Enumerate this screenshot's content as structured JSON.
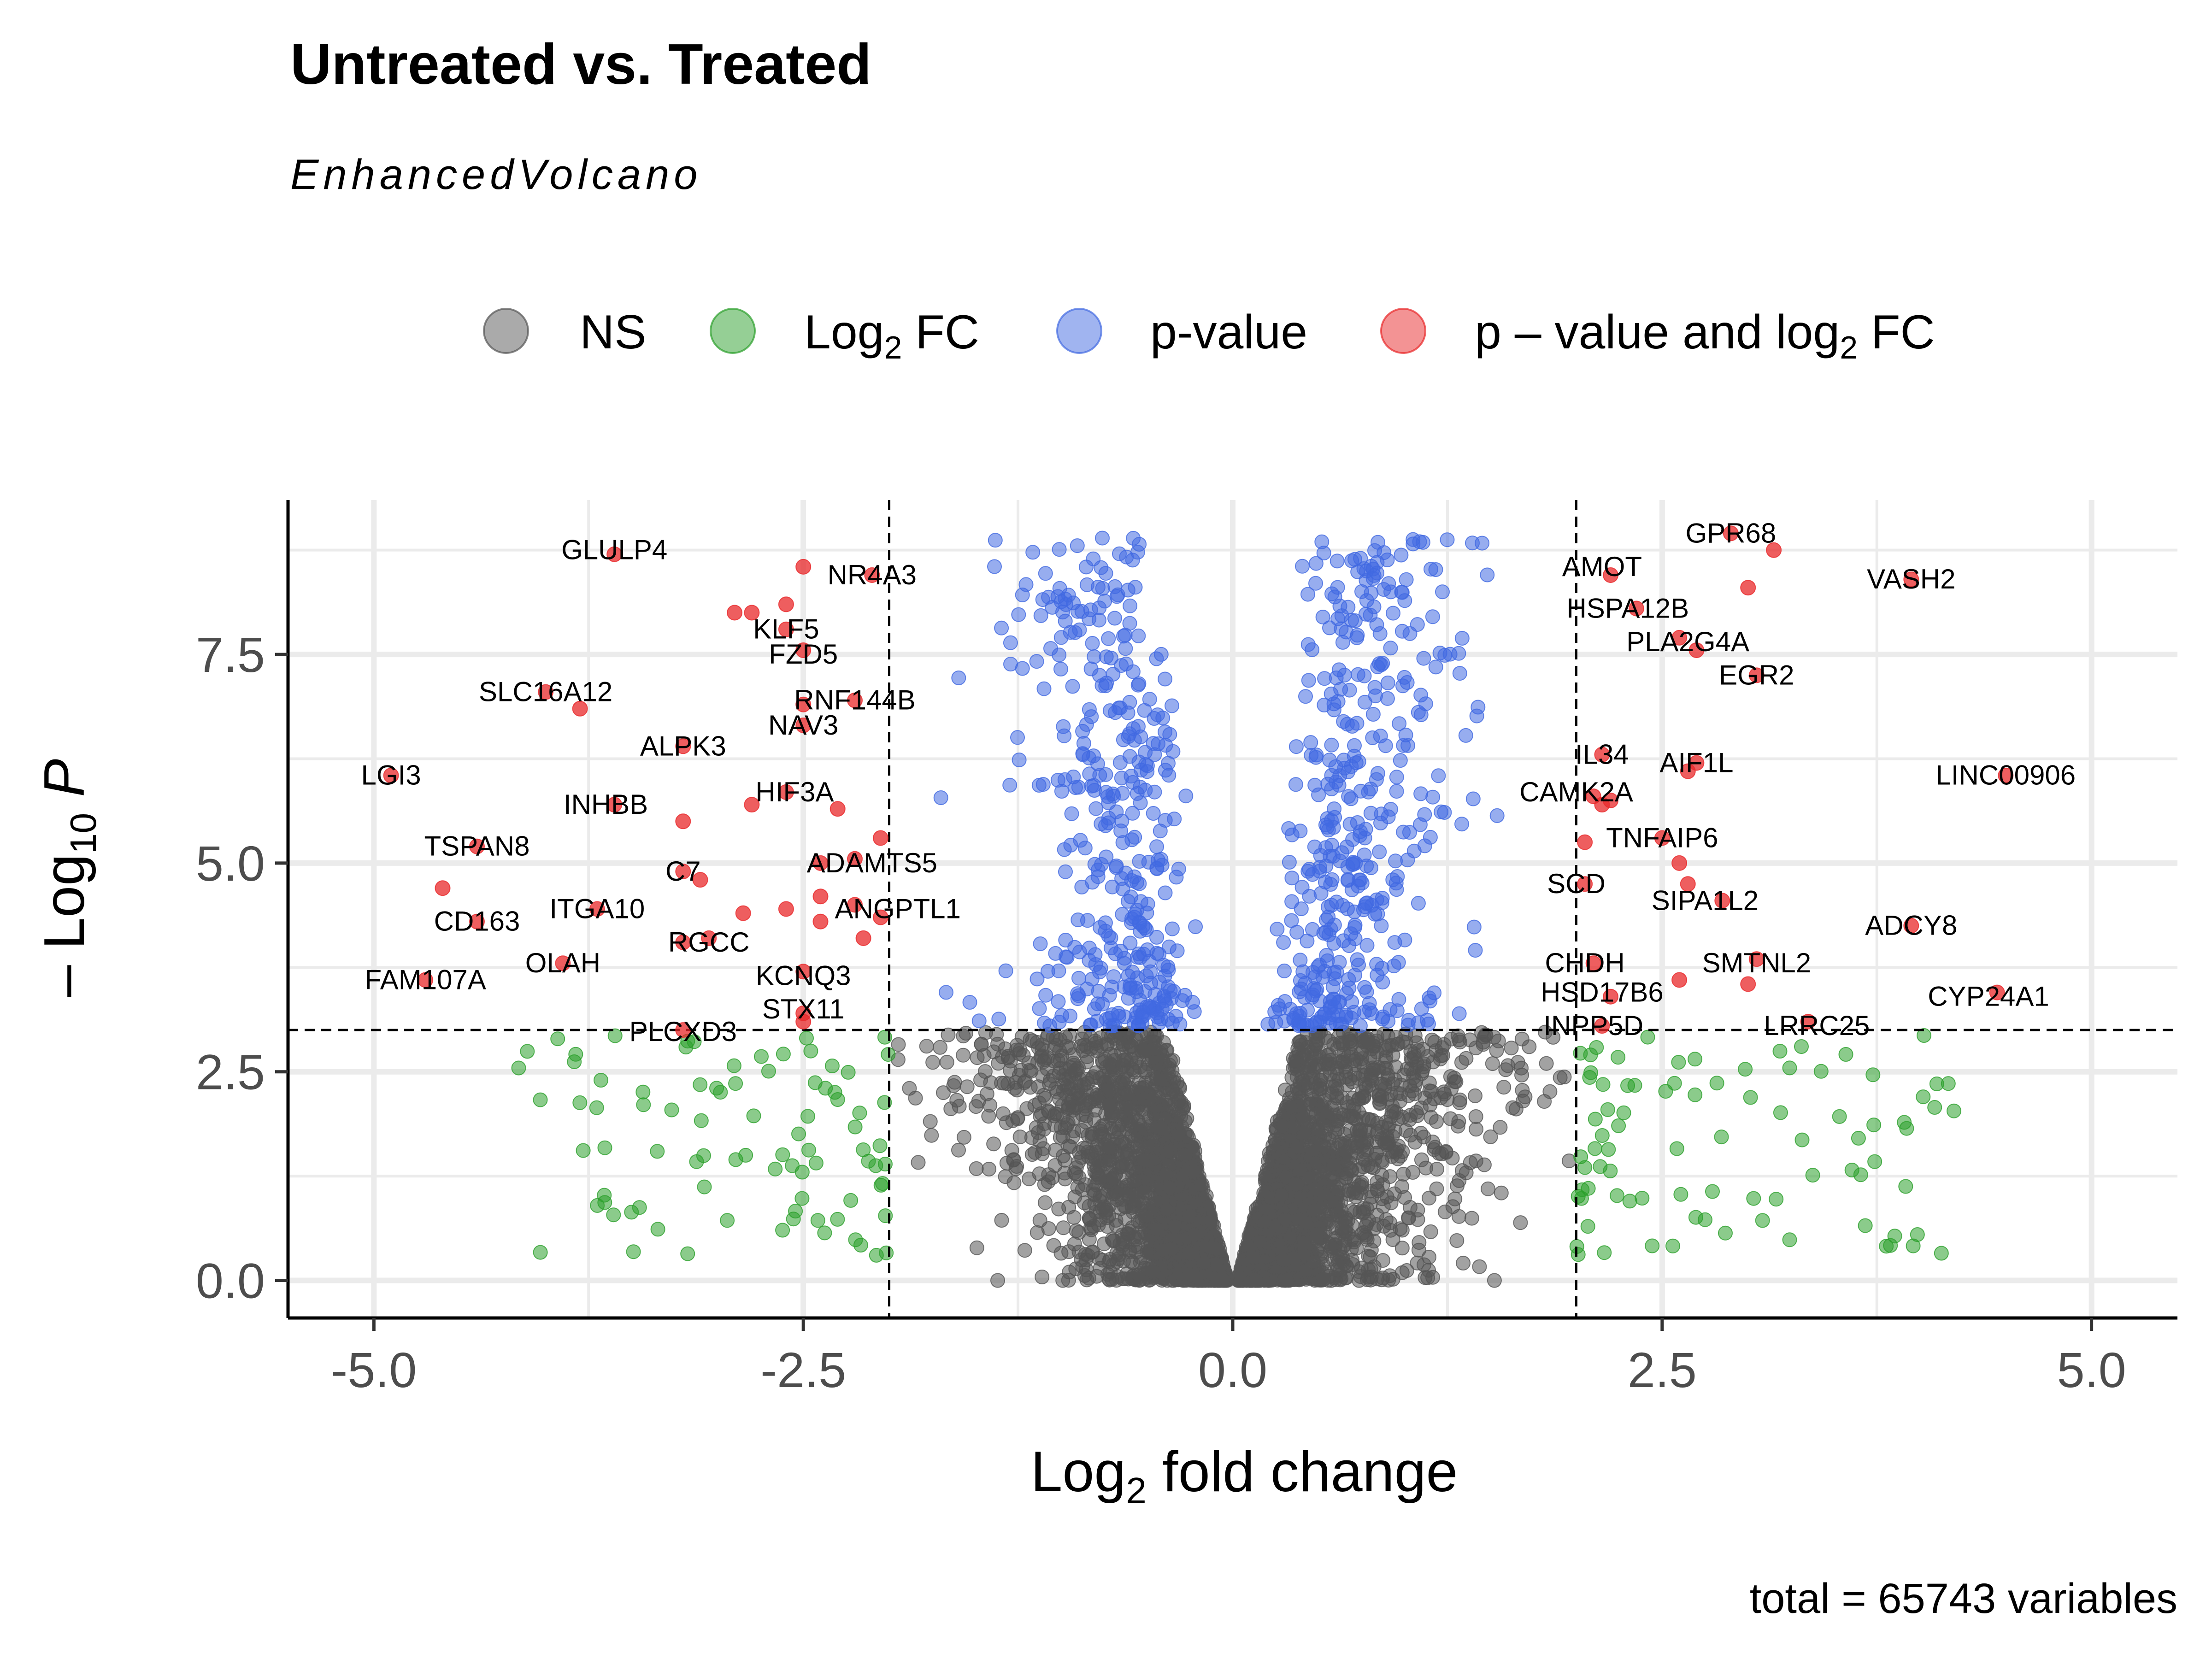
{
  "chart_data": {
    "type": "scatter",
    "title": "Untreated vs. Treated",
    "subtitle": "EnhancedVolcano",
    "caption": "total = 65743 variables",
    "xlabel": {
      "main": "Log",
      "sub": "2",
      "rest": " fold change"
    },
    "ylabel": {
      "prefix": "– Log",
      "sub": "10",
      "var": "P"
    },
    "xlim": [
      -5.5,
      5.5
    ],
    "ylim": [
      -0.45,
      9.35
    ],
    "x_ticks": [
      -5.0,
      -2.5,
      0.0,
      2.5,
      5.0
    ],
    "x_tick_labels": [
      "-5.0",
      "-2.5",
      "0.0",
      "2.5",
      "5.0"
    ],
    "y_ticks": [
      0.0,
      2.5,
      5.0,
      7.5
    ],
    "y_tick_labels": [
      "0.0",
      "2.5",
      "5.0",
      "7.5"
    ],
    "grid": true,
    "thresholds": {
      "log2fc": [
        -2,
        2
      ],
      "neg_log10_p": 3
    },
    "legend_position": "top",
    "legend": [
      {
        "key": "ns",
        "label": "NS",
        "color": "#555555"
      },
      {
        "key": "fc",
        "label": "Log",
        "sub": "2",
        "rest": " FC",
        "color": "#2ca02c"
      },
      {
        "key": "p",
        "label": "p-value",
        "color": "#4169e1"
      },
      {
        "key": "both",
        "label": "p – value and log",
        "sub": "2",
        "rest": " FC",
        "color": "#e8282a"
      }
    ],
    "colors": {
      "ns": "#555555",
      "fc": "#2ca02c",
      "p": "#4169e1",
      "both": "#e8282a"
    },
    "series": [
      {
        "name": "NS",
        "generated": {
          "count": 4200,
          "desc": "dense cloud near x=0, y up to 3"
        }
      },
      {
        "name": "Log2 FC",
        "generated": {
          "count": 170,
          "desc": "|x|>2, y<3"
        }
      },
      {
        "name": "p-value",
        "generated": {
          "count": 780,
          "desc": "|x|<2, y>3"
        }
      },
      {
        "name": "p - value and log2 FC",
        "points": [
          {
            "x": -3.6,
            "y": 8.7,
            "label": "GLULP4"
          },
          {
            "x": -2.5,
            "y": 8.55
          },
          {
            "x": -2.1,
            "y": 8.45,
            "label": "NR4A3"
          },
          {
            "x": -2.9,
            "y": 8.0
          },
          {
            "x": -2.8,
            "y": 8.0
          },
          {
            "x": -2.6,
            "y": 7.8,
            "label": "KLF5"
          },
          {
            "x": -2.6,
            "y": 8.1
          },
          {
            "x": -2.5,
            "y": 7.55,
            "label": "FZD5"
          },
          {
            "x": -4.0,
            "y": 7.05,
            "label": "SLC16A12"
          },
          {
            "x": -3.8,
            "y": 6.85
          },
          {
            "x": -2.2,
            "y": 6.95,
            "label": "RNF144B"
          },
          {
            "x": -2.5,
            "y": 6.9
          },
          {
            "x": -2.5,
            "y": 6.65,
            "label": "NAV3"
          },
          {
            "x": -3.2,
            "y": 6.4,
            "label": "ALPK3"
          },
          {
            "x": -4.9,
            "y": 6.05,
            "label": "LGI3"
          },
          {
            "x": -2.6,
            "y": 5.85,
            "label": "HIF3A"
          },
          {
            "x": -2.8,
            "y": 5.7
          },
          {
            "x": -2.3,
            "y": 5.65
          },
          {
            "x": -3.6,
            "y": 5.7,
            "label": "INHBB"
          },
          {
            "x": -3.2,
            "y": 5.5
          },
          {
            "x": -2.05,
            "y": 5.3
          },
          {
            "x": -4.4,
            "y": 5.2,
            "label": "TSPAN8"
          },
          {
            "x": -2.4,
            "y": 5.0,
            "label": "ADAMTS5"
          },
          {
            "x": -2.2,
            "y": 5.05
          },
          {
            "x": -3.2,
            "y": 4.9,
            "label": "C7"
          },
          {
            "x": -3.1,
            "y": 4.8
          },
          {
            "x": -4.6,
            "y": 4.7
          },
          {
            "x": -3.7,
            "y": 4.45,
            "label": "ITGA10"
          },
          {
            "x": -2.4,
            "y": 4.6
          },
          {
            "x": -2.2,
            "y": 4.5,
            "label": "ANGPTL1"
          },
          {
            "x": -2.6,
            "y": 4.45
          },
          {
            "x": -2.85,
            "y": 4.4
          },
          {
            "x": -2.05,
            "y": 4.35
          },
          {
            "x": -2.4,
            "y": 4.3
          },
          {
            "x": -4.4,
            "y": 4.3,
            "label": "CD163"
          },
          {
            "x": -3.05,
            "y": 4.1,
            "label": "RGCC"
          },
          {
            "x": -3.2,
            "y": 4.05
          },
          {
            "x": -2.15,
            "y": 4.1
          },
          {
            "x": -3.9,
            "y": 3.8,
            "label": "OLAH"
          },
          {
            "x": -4.7,
            "y": 3.6,
            "label": "FAM107A"
          },
          {
            "x": -2.5,
            "y": 3.7,
            "label": "KCNQ3"
          },
          {
            "x": -2.5,
            "y": 3.2,
            "label": "STX11"
          },
          {
            "x": -2.5,
            "y": 3.1
          },
          {
            "x": -3.2,
            "y": 3.0,
            "label": "PLCXD3"
          },
          {
            "x": 2.9,
            "y": 8.95,
            "label": "GPR68"
          },
          {
            "x": 3.15,
            "y": 8.75
          },
          {
            "x": 2.2,
            "y": 8.45,
            "label": "AMOT"
          },
          {
            "x": 3.95,
            "y": 8.4,
            "label": "VASH2"
          },
          {
            "x": 3.0,
            "y": 8.3
          },
          {
            "x": 2.35,
            "y": 8.05,
            "label": "HSPA12B"
          },
          {
            "x": 2.6,
            "y": 7.7,
            "label": "PLA2G4A"
          },
          {
            "x": 2.7,
            "y": 7.55
          },
          {
            "x": 3.05,
            "y": 7.25,
            "label": "EGR2"
          },
          {
            "x": 2.15,
            "y": 6.3,
            "label": "IL34"
          },
          {
            "x": 2.7,
            "y": 6.2,
            "label": "AIF1L"
          },
          {
            "x": 2.65,
            "y": 6.1
          },
          {
            "x": 4.5,
            "y": 6.05,
            "label": "LINC00906"
          },
          {
            "x": 2.1,
            "y": 5.8,
            "label": "CAMK2A"
          },
          {
            "x": 2.2,
            "y": 5.75
          },
          {
            "x": 2.15,
            "y": 5.7
          },
          {
            "x": 2.5,
            "y": 5.3,
            "label": "TNFAIP6"
          },
          {
            "x": 2.05,
            "y": 5.25
          },
          {
            "x": 2.6,
            "y": 5.0
          },
          {
            "x": 2.05,
            "y": 4.75,
            "label": "SCD"
          },
          {
            "x": 2.65,
            "y": 4.75
          },
          {
            "x": 2.85,
            "y": 4.55,
            "label": "SIPA1L2"
          },
          {
            "x": 3.95,
            "y": 4.25,
            "label": "ADCY8"
          },
          {
            "x": 3.05,
            "y": 3.85,
            "label": "SMTNL2"
          },
          {
            "x": 2.1,
            "y": 3.8,
            "label": "CHDH"
          },
          {
            "x": 2.6,
            "y": 3.6
          },
          {
            "x": 3.0,
            "y": 3.55
          },
          {
            "x": 2.2,
            "y": 3.4,
            "label": "HSD17B6"
          },
          {
            "x": 4.45,
            "y": 3.45,
            "label": "CYP24A1"
          },
          {
            "x": 3.35,
            "y": 3.1,
            "label": "LRRC25"
          },
          {
            "x": 2.15,
            "y": 3.05,
            "label": "INPP5D"
          }
        ]
      }
    ],
    "labels": [
      {
        "text": "GLULP4",
        "x": -3.6,
        "y": 8.75
      },
      {
        "text": "NR4A3",
        "x": -2.1,
        "y": 8.45
      },
      {
        "text": "KLF5",
        "x": -2.6,
        "y": 7.8
      },
      {
        "text": "FZD5",
        "x": -2.5,
        "y": 7.5
      },
      {
        "text": "SLC16A12",
        "x": -4.0,
        "y": 7.05
      },
      {
        "text": "RNF144B",
        "x": -2.2,
        "y": 6.95
      },
      {
        "text": "NAV3",
        "x": -2.5,
        "y": 6.65
      },
      {
        "text": "ALPK3",
        "x": -3.2,
        "y": 6.4
      },
      {
        "text": "LGI3",
        "x": -4.9,
        "y": 6.05
      },
      {
        "text": "HIF3A",
        "x": -2.55,
        "y": 5.85
      },
      {
        "text": "INHBB",
        "x": -3.65,
        "y": 5.7
      },
      {
        "text": "TSPAN8",
        "x": -4.4,
        "y": 5.2
      },
      {
        "text": "ADAMTS5",
        "x": -2.1,
        "y": 5.0
      },
      {
        "text": "C7",
        "x": -3.2,
        "y": 4.9
      },
      {
        "text": "ITGA10",
        "x": -3.7,
        "y": 4.45
      },
      {
        "text": "ANGPTL1",
        "x": -1.95,
        "y": 4.45
      },
      {
        "text": "CD163",
        "x": -4.4,
        "y": 4.3
      },
      {
        "text": "RGCC",
        "x": -3.05,
        "y": 4.05
      },
      {
        "text": "OLAH",
        "x": -3.9,
        "y": 3.8
      },
      {
        "text": "FAM107A",
        "x": -4.7,
        "y": 3.6
      },
      {
        "text": "KCNQ3",
        "x": -2.5,
        "y": 3.65
      },
      {
        "text": "STX11",
        "x": -2.5,
        "y": 3.25
      },
      {
        "text": "PLCXD3",
        "x": -3.2,
        "y": 2.98
      },
      {
        "text": "GPR68",
        "x": 2.9,
        "y": 8.95
      },
      {
        "text": "AMOT",
        "x": 2.15,
        "y": 8.55
      },
      {
        "text": "VASH2",
        "x": 3.95,
        "y": 8.4
      },
      {
        "text": "HSPA12B",
        "x": 2.3,
        "y": 8.05
      },
      {
        "text": "PLA2G4A",
        "x": 2.65,
        "y": 7.65
      },
      {
        "text": "EGR2",
        "x": 3.05,
        "y": 7.25
      },
      {
        "text": "IL34",
        "x": 2.15,
        "y": 6.3
      },
      {
        "text": "AIF1L",
        "x": 2.7,
        "y": 6.2
      },
      {
        "text": "LINC00906",
        "x": 4.5,
        "y": 6.05
      },
      {
        "text": "CAMK2A",
        "x": 2.0,
        "y": 5.85
      },
      {
        "text": "TNFAIP6",
        "x": 2.5,
        "y": 5.3
      },
      {
        "text": "SCD",
        "x": 2.0,
        "y": 4.75
      },
      {
        "text": "SIPA1L2",
        "x": 2.75,
        "y": 4.55
      },
      {
        "text": "ADCY8",
        "x": 3.95,
        "y": 4.25
      },
      {
        "text": "SMTNL2",
        "x": 3.05,
        "y": 3.8
      },
      {
        "text": "CHDH",
        "x": 2.05,
        "y": 3.8
      },
      {
        "text": "HSD17B6",
        "x": 2.15,
        "y": 3.45
      },
      {
        "text": "CYP24A1",
        "x": 4.4,
        "y": 3.4
      },
      {
        "text": "LRRC25",
        "x": 3.4,
        "y": 3.05
      },
      {
        "text": "INPP5D",
        "x": 2.1,
        "y": 3.05
      }
    ]
  }
}
